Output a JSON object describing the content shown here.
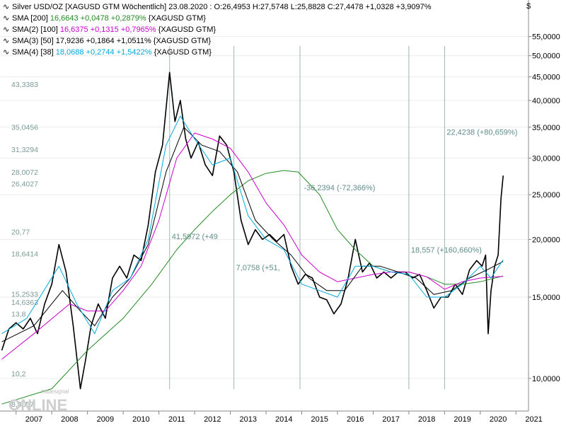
{
  "header": {
    "title": "Silver USD/OZ [XAGUSD GTM  Wöchentlich] 23.08.2020 : O:26,4953 H:27,5748 L:25,8828 C:27,4478 +1,0328 +3,9097%"
  },
  "axis": {
    "currency_symbol": "$"
  },
  "indicators": [
    {
      "prefix": "SMA [200]",
      "values": "16,6643 +0,0478 +0,2879%",
      "suffix": "{XAGUSD GTM}",
      "value_color": "#228b22"
    },
    {
      "prefix": "SMA(2) [100]",
      "values": "16,6375 +0,1315 +0,7965%",
      "suffix": "{XAGUSD GTM}",
      "value_color": "#cc00cc"
    },
    {
      "prefix": "SMA(3) [50]",
      "values": "17,9236 +0,1864 +1,0511%",
      "suffix": "{XAGUSD GTM}",
      "value_color": "#000000"
    },
    {
      "prefix": "SMA(4) [38]",
      "values": "18,0688 +0,2744 +1,5422%",
      "suffix": "{XAGUSD GTM}",
      "value_color": "#00aadd"
    }
  ],
  "watermark": {
    "small": "tradesignal",
    "large": "ONLINE"
  },
  "chart_data": {
    "type": "line",
    "y_scale": "log",
    "ylim": [
      8.5,
      66
    ],
    "xlim": [
      2006.55,
      2021.35
    ],
    "y_ticks": [
      "55,0000",
      "50,0000",
      "45,0000",
      "40,0000",
      "35,0000",
      "30,0000",
      "25,0000",
      "20,0000",
      "15,0000",
      "10,0000"
    ],
    "y_tick_values": [
      55,
      50,
      45,
      40,
      35,
      30,
      25,
      20,
      15,
      10
    ],
    "x_ticks": [
      "2007",
      "2008",
      "2009",
      "2010",
      "2011",
      "2012",
      "2013",
      "2014",
      "2015",
      "2016",
      "2017",
      "2018",
      "2019",
      "2020",
      "2021"
    ],
    "level_labels": [
      {
        "label": "43,3383",
        "value": 43.34
      },
      {
        "label": "35,0456",
        "value": 35.05
      },
      {
        "label": "31,3294",
        "value": 31.33
      },
      {
        "label": "28,0072",
        "value": 28.01
      },
      {
        "label": "26,4027",
        "value": 26.4
      },
      {
        "label": "20,77",
        "value": 20.77
      },
      {
        "label": "18,6414",
        "value": 18.64
      },
      {
        "label": "15,2533",
        "value": 15.25
      },
      {
        "label": "14,6363",
        "value": 14.64
      },
      {
        "label": "13,8",
        "value": 13.8
      },
      {
        "label": "10,2",
        "value": 10.25
      },
      {
        "label": "8,8057",
        "value": 8.81
      }
    ],
    "vertical_lines": [
      2011.3,
      2013.1,
      2014.95,
      2018.0,
      2019.0
    ],
    "annotations": [
      {
        "text": "22,4238 (+80,659%)",
        "x": 2019.0,
        "y": 34.2
      },
      {
        "text": "-36,2394 (-72,366%)",
        "x": 2015.0,
        "y": 25.9
      },
      {
        "text": "41,5972 (+49",
        "x": 2011.3,
        "y": 20.3
      },
      {
        "text": "18,557 (+160,660%)",
        "x": 2018.0,
        "y": 19.0
      },
      {
        "text": "7,0758 (+51,",
        "x": 2013.1,
        "y": 17.4
      }
    ],
    "series": [
      {
        "name": "Silver USD/OZ",
        "color": "#000000",
        "x": [
          2006.6,
          2006.8,
          2007.0,
          2007.2,
          2007.4,
          2007.6,
          2007.8,
          2008.0,
          2008.2,
          2008.4,
          2008.6,
          2008.8,
          2008.95,
          2009.1,
          2009.3,
          2009.5,
          2009.7,
          2009.9,
          2010.1,
          2010.3,
          2010.5,
          2010.7,
          2010.9,
          2011.1,
          2011.3,
          2011.45,
          2011.6,
          2011.75,
          2011.9,
          2012.1,
          2012.3,
          2012.5,
          2012.7,
          2012.9,
          2013.1,
          2013.3,
          2013.5,
          2013.7,
          2013.9,
          2014.1,
          2014.3,
          2014.5,
          2014.7,
          2014.9,
          2015.1,
          2015.3,
          2015.5,
          2015.7,
          2015.9,
          2016.1,
          2016.3,
          2016.5,
          2016.7,
          2016.9,
          2017.1,
          2017.3,
          2017.5,
          2017.7,
          2017.9,
          2018.1,
          2018.3,
          2018.5,
          2018.7,
          2018.9,
          2019.1,
          2019.3,
          2019.5,
          2019.7,
          2019.9,
          2020.05,
          2020.15,
          2020.22,
          2020.3,
          2020.4,
          2020.5,
          2020.58,
          2020.64
        ],
        "y": [
          11.5,
          12.8,
          13.2,
          12.8,
          13.5,
          12.5,
          14.5,
          16.0,
          19.5,
          17.0,
          13.0,
          9.5,
          11.0,
          13.0,
          14.5,
          13.5,
          16.5,
          17.5,
          16.5,
          18.5,
          18.0,
          21.5,
          28.0,
          32.0,
          46.0,
          36.0,
          40.0,
          33.0,
          30.0,
          32.5,
          29.0,
          27.5,
          33.5,
          32.0,
          28.0,
          22.0,
          19.5,
          21.0,
          20.0,
          20.5,
          19.8,
          20.5,
          17.5,
          16.0,
          16.8,
          16.5,
          15.0,
          14.8,
          13.8,
          14.5,
          16.5,
          20.0,
          17.0,
          17.8,
          16.5,
          17.0,
          16.5,
          17.0,
          17.0,
          16.5,
          16.8,
          15.5,
          14.2,
          15.0,
          15.0,
          16.0,
          15.2,
          17.2,
          18.0,
          17.5,
          18.5,
          12.5,
          15.5,
          17.5,
          18.5,
          24.5,
          27.5
        ]
      },
      {
        "name": "SMA [200]",
        "color": "#228b22",
        "x": [
          2006.6,
          2008.0,
          2009.0,
          2010.0,
          2010.8,
          2011.5,
          2012.0,
          2012.5,
          2013.0,
          2013.5,
          2014.0,
          2014.5,
          2014.9,
          2015.5,
          2016.0,
          2016.5,
          2017.0,
          2017.5,
          2018.0,
          2018.5,
          2019.0,
          2019.5,
          2020.0,
          2020.64
        ],
        "y": [
          8.8,
          9.5,
          11.5,
          13.5,
          16.0,
          19.0,
          21.0,
          23.0,
          25.0,
          26.8,
          27.8,
          28.2,
          28.0,
          25.0,
          21.0,
          19.0,
          17.5,
          17.0,
          17.0,
          16.6,
          16.0,
          16.0,
          16.2,
          16.66
        ]
      },
      {
        "name": "SMA(2) [100]",
        "color": "#cc00cc",
        "x": [
          2006.6,
          2007.5,
          2008.5,
          2009.0,
          2009.5,
          2010.0,
          2010.5,
          2011.0,
          2011.5,
          2012.0,
          2012.5,
          2013.0,
          2013.5,
          2014.0,
          2014.5,
          2015.0,
          2015.5,
          2016.0,
          2016.5,
          2017.0,
          2017.5,
          2018.0,
          2018.5,
          2019.0,
          2019.5,
          2020.0,
          2020.64
        ],
        "y": [
          11.0,
          12.5,
          14.5,
          14.0,
          14.0,
          15.5,
          17.5,
          22.0,
          30.0,
          34.0,
          33.0,
          31.5,
          28.0,
          24.0,
          21.5,
          18.5,
          17.0,
          16.2,
          16.5,
          16.8,
          17.0,
          17.0,
          16.6,
          15.6,
          16.2,
          16.5,
          16.64
        ]
      },
      {
        "name": "SMA(3) [50]",
        "color": "#000000",
        "x": [
          2006.6,
          2007.5,
          2008.3,
          2008.8,
          2009.2,
          2009.7,
          2010.2,
          2010.7,
          2011.2,
          2011.7,
          2012.2,
          2012.7,
          2013.2,
          2013.7,
          2014.2,
          2014.7,
          2015.2,
          2015.7,
          2016.2,
          2016.7,
          2017.2,
          2017.7,
          2018.2,
          2018.7,
          2019.2,
          2019.7,
          2020.2,
          2020.64
        ],
        "y": [
          12.0,
          13.0,
          15.5,
          14.0,
          13.0,
          15.0,
          16.5,
          19.5,
          28.0,
          35.0,
          32.0,
          31.0,
          28.0,
          22.0,
          20.0,
          18.5,
          16.5,
          15.5,
          15.5,
          17.5,
          17.5,
          17.0,
          16.5,
          15.2,
          15.5,
          16.5,
          17.2,
          17.92
        ]
      },
      {
        "name": "SMA(4) [38]",
        "color": "#00aadd",
        "x": [
          2006.6,
          2007.3,
          2008.2,
          2008.7,
          2009.2,
          2009.7,
          2010.2,
          2010.7,
          2011.2,
          2011.6,
          2012.0,
          2012.5,
          2013.0,
          2013.5,
          2014.0,
          2014.5,
          2015.0,
          2015.5,
          2016.0,
          2016.5,
          2017.0,
          2017.5,
          2018.0,
          2018.5,
          2019.0,
          2019.5,
          2020.0,
          2020.3,
          2020.64
        ],
        "y": [
          12.5,
          13.5,
          17.5,
          14.5,
          12.5,
          15.5,
          16.5,
          20.0,
          32.0,
          37.0,
          33.0,
          29.0,
          30.0,
          22.5,
          20.0,
          19.0,
          16.0,
          15.5,
          15.0,
          17.5,
          17.5,
          17.0,
          16.8,
          15.0,
          15.0,
          16.0,
          17.5,
          16.5,
          18.07
        ]
      }
    ]
  }
}
